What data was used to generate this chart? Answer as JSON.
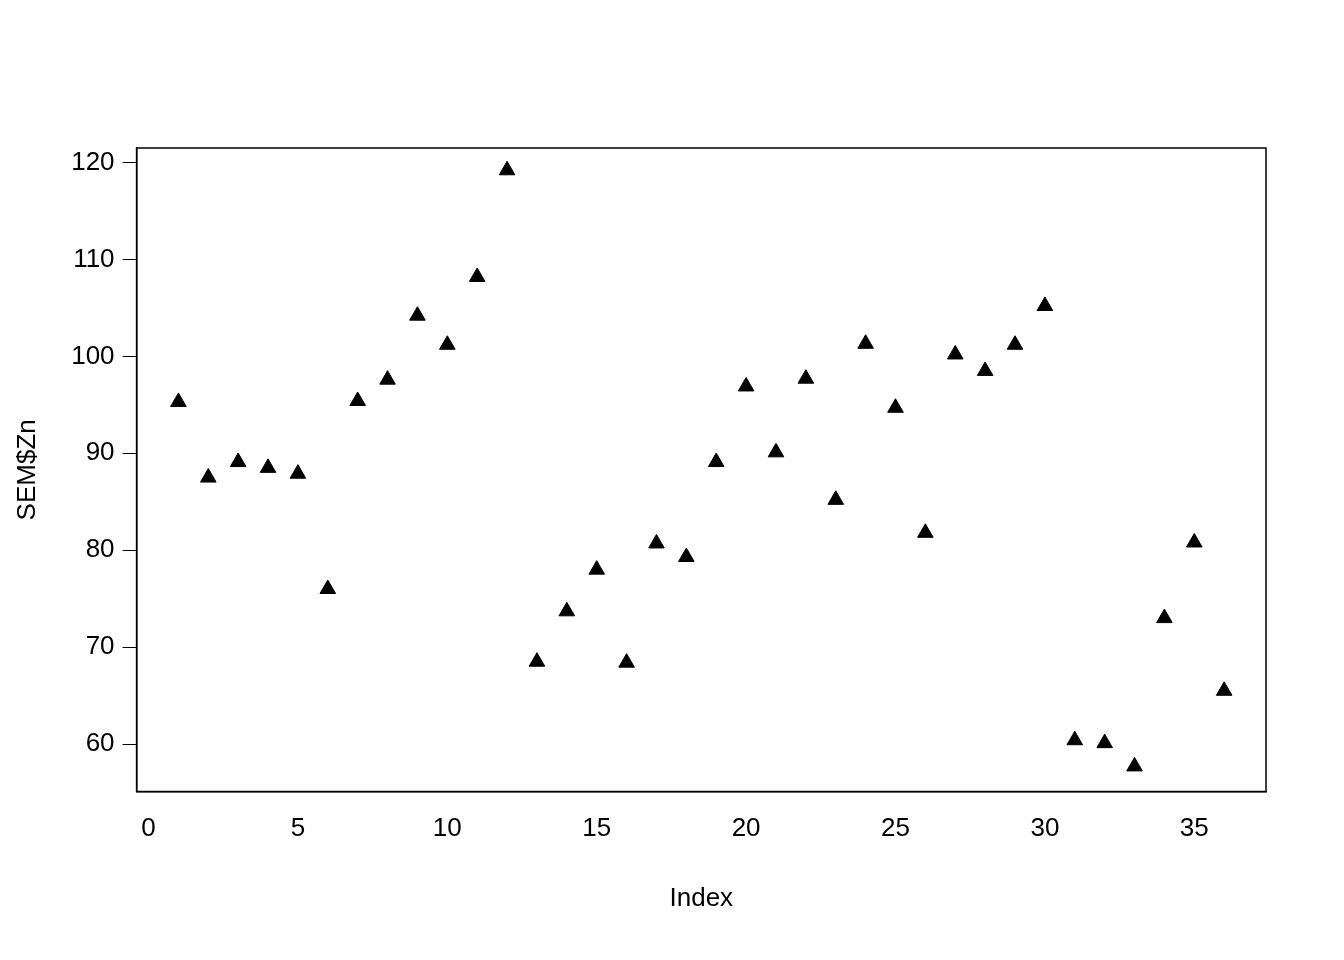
{
  "chart_data": {
    "type": "scatter",
    "xlabel": "Index",
    "ylabel": "SEM$Zn",
    "x": [
      1,
      2,
      3,
      4,
      5,
      6,
      7,
      8,
      9,
      10,
      11,
      12,
      13,
      14,
      15,
      16,
      17,
      18,
      19,
      20,
      21,
      22,
      23,
      24,
      25,
      26,
      27,
      28,
      29,
      30,
      31,
      32,
      33,
      34,
      35,
      36
    ],
    "values": [
      95.3,
      87.5,
      89.1,
      88.5,
      87.9,
      76.0,
      95.4,
      97.6,
      104.2,
      101.2,
      108.2,
      119.2,
      68.5,
      73.7,
      78.0,
      68.4,
      80.7,
      79.3,
      89.1,
      96.9,
      90.1,
      97.7,
      85.2,
      101.3,
      94.7,
      81.8,
      100.2,
      98.5,
      101.2,
      105.2,
      60.4,
      60.1,
      57.7,
      73.0,
      80.8,
      65.5
    ],
    "color": "#000000",
    "marker": "triangle",
    "grid": false,
    "legend": false,
    "xlim": [
      -0.4,
      37.4
    ],
    "xticks": [
      0,
      5,
      10,
      15,
      20,
      25,
      30,
      35
    ],
    "ylim": [
      55.1,
      121.5
    ],
    "yticks": [
      60,
      70,
      80,
      90,
      100,
      110,
      120
    ]
  }
}
